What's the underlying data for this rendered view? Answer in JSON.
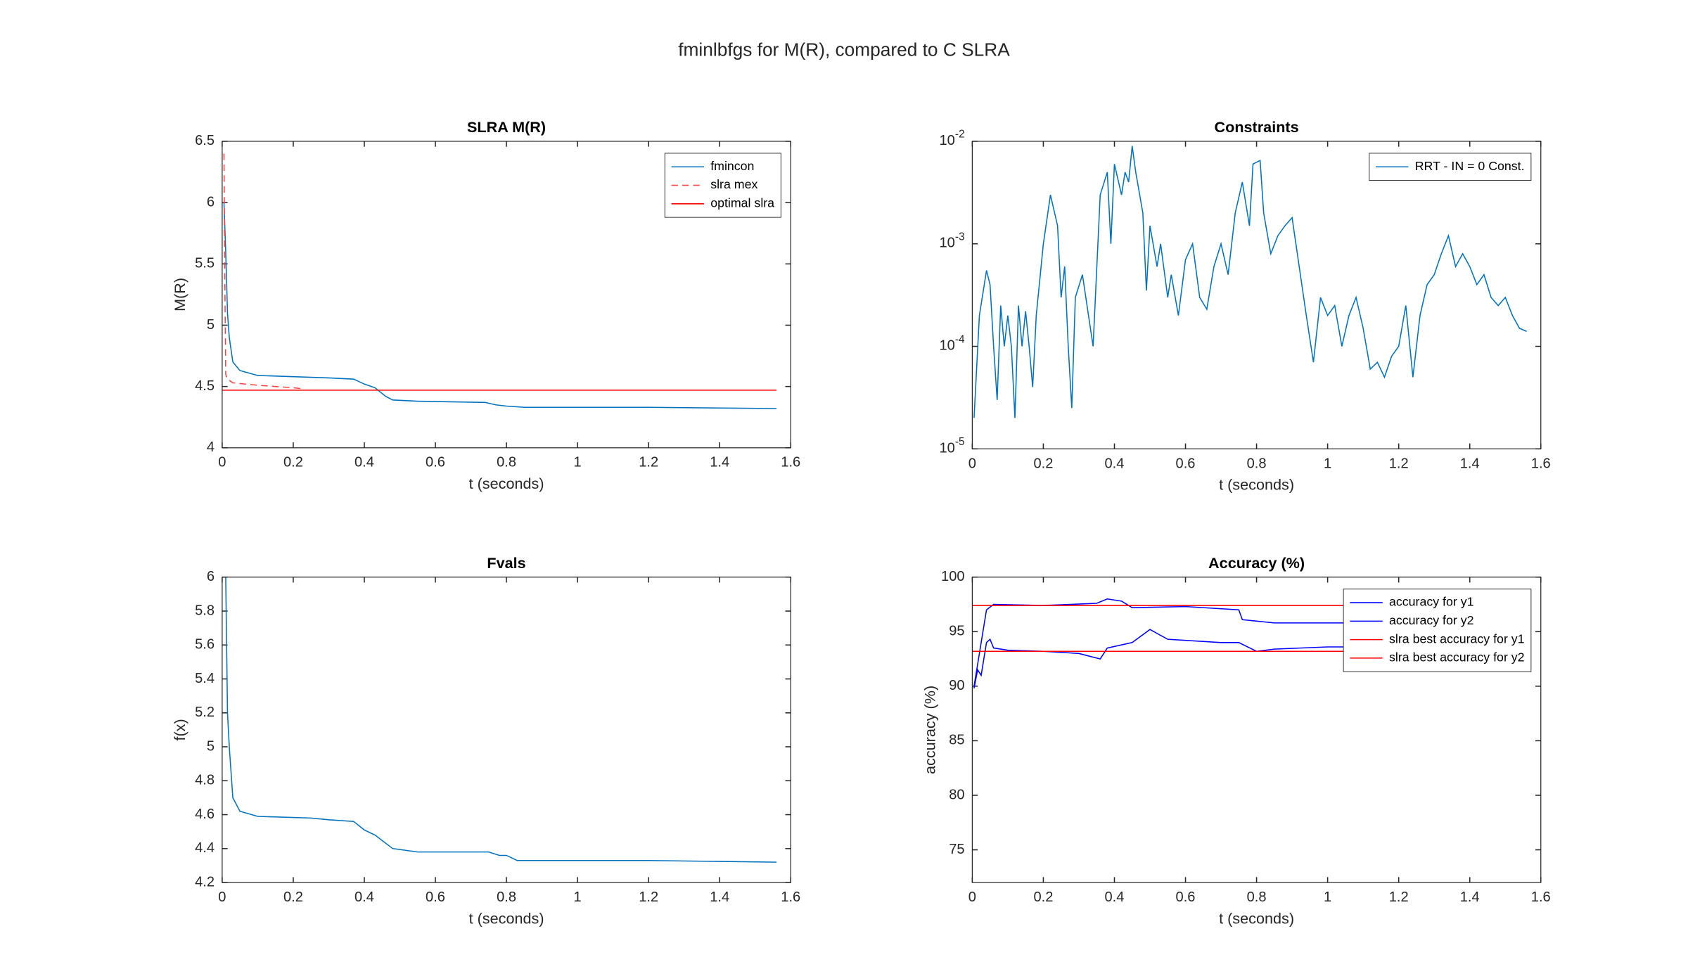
{
  "title": "fminlbfgs for M(R), compared to C SLRA",
  "chart_data": [
    {
      "type": "line",
      "title": "SLRA M(R)",
      "xlabel": "t (seconds)",
      "ylabel": "M(R)",
      "xlim": [
        0,
        1.6
      ],
      "xticks": [
        0,
        0.2,
        0.4,
        0.6,
        0.8,
        1,
        1.2,
        1.4,
        1.6
      ],
      "ylim": [
        4,
        6.5
      ],
      "yticks": [
        4,
        4.5,
        5,
        5.5,
        6,
        6.5
      ],
      "legend": "northeast",
      "series": [
        {
          "name": "fmincon",
          "color": "#0072bd",
          "style": "solid",
          "x": [
            0.005,
            0.01,
            0.015,
            0.02,
            0.03,
            0.05,
            0.1,
            0.2,
            0.3,
            0.37,
            0.4,
            0.43,
            0.46,
            0.48,
            0.55,
            0.74,
            0.77,
            0.8,
            0.85,
            0.9,
            1.2,
            1.56
          ],
          "values": [
            6.0,
            5.6,
            5.1,
            4.9,
            4.7,
            4.63,
            4.59,
            4.58,
            4.57,
            4.56,
            4.52,
            4.49,
            4.42,
            4.39,
            4.38,
            4.37,
            4.35,
            4.34,
            4.33,
            4.33,
            4.33,
            4.32
          ]
        },
        {
          "name": "slra mex",
          "color": "#ff4040",
          "style": "dashed",
          "x": [
            0.005,
            0.008,
            0.01,
            0.015,
            0.03,
            0.1,
            0.2,
            0.23
          ],
          "values": [
            6.4,
            5.2,
            4.6,
            4.56,
            4.53,
            4.51,
            4.49,
            4.48
          ]
        },
        {
          "name": "optimal slra",
          "color": "#ff0000",
          "style": "solid",
          "x": [
            0,
            1.56
          ],
          "values": [
            4.47,
            4.47
          ]
        }
      ]
    },
    {
      "type": "line",
      "title": "Constraints",
      "xlabel": "t (seconds)",
      "xlim": [
        0,
        1.6
      ],
      "xticks": [
        0,
        0.2,
        0.4,
        0.6,
        0.8,
        1,
        1.2,
        1.4,
        1.6
      ],
      "yscale": "log",
      "ylim": [
        1e-05,
        0.01
      ],
      "yticks": [
        {
          "value": 1e-05,
          "label": "10-5"
        },
        {
          "value": 0.0001,
          "label": "10-4"
        },
        {
          "value": 0.001,
          "label": "10-3"
        },
        {
          "value": 0.01,
          "label": "10-2"
        }
      ],
      "legend": "northeast",
      "series": [
        {
          "name": "RRT - IN = 0 Const.",
          "color": "#0072bd",
          "style": "solid",
          "x": [
            0.005,
            0.02,
            0.04,
            0.05,
            0.06,
            0.07,
            0.08,
            0.09,
            0.1,
            0.11,
            0.12,
            0.13,
            0.14,
            0.15,
            0.16,
            0.17,
            0.18,
            0.2,
            0.22,
            0.24,
            0.25,
            0.26,
            0.27,
            0.28,
            0.29,
            0.31,
            0.34,
            0.36,
            0.38,
            0.39,
            0.4,
            0.42,
            0.43,
            0.44,
            0.45,
            0.46,
            0.48,
            0.49,
            0.5,
            0.52,
            0.53,
            0.55,
            0.56,
            0.58,
            0.6,
            0.62,
            0.64,
            0.66,
            0.68,
            0.7,
            0.72,
            0.74,
            0.76,
            0.78,
            0.79,
            0.81,
            0.82,
            0.84,
            0.86,
            0.88,
            0.9,
            0.92,
            0.94,
            0.96,
            0.98,
            1.0,
            1.02,
            1.04,
            1.06,
            1.08,
            1.1,
            1.12,
            1.14,
            1.16,
            1.18,
            1.2,
            1.22,
            1.24,
            1.26,
            1.28,
            1.3,
            1.32,
            1.34,
            1.36,
            1.38,
            1.4,
            1.42,
            1.44,
            1.46,
            1.48,
            1.5,
            1.52,
            1.54,
            1.56
          ],
          "values": [
            2e-05,
            0.0002,
            0.00055,
            0.0004,
            0.0001,
            3e-05,
            0.00025,
            0.0001,
            0.0002,
            0.0001,
            2e-05,
            0.00025,
            0.0001,
            0.00022,
            0.0001,
            4e-05,
            0.0002,
            0.001,
            0.003,
            0.0015,
            0.0003,
            0.0006,
            0.0001,
            2.5e-05,
            0.0003,
            0.0005,
            0.0001,
            0.003,
            0.005,
            0.001,
            0.006,
            0.003,
            0.005,
            0.004,
            0.009,
            0.005,
            0.002,
            0.00035,
            0.0015,
            0.0006,
            0.001,
            0.0003,
            0.0005,
            0.0002,
            0.0007,
            0.001,
            0.0003,
            0.00023,
            0.0006,
            0.001,
            0.0005,
            0.002,
            0.004,
            0.0015,
            0.006,
            0.0065,
            0.002,
            0.0008,
            0.0012,
            0.0015,
            0.0018,
            0.0006,
            0.0002,
            7e-05,
            0.0003,
            0.0002,
            0.00025,
            0.0001,
            0.0002,
            0.0003,
            0.00015,
            6e-05,
            7e-05,
            5e-05,
            8e-05,
            0.0001,
            0.00025,
            5e-05,
            0.0002,
            0.0004,
            0.0005,
            0.0008,
            0.0012,
            0.0006,
            0.0008,
            0.0006,
            0.0004,
            0.0005,
            0.0003,
            0.00025,
            0.0003,
            0.0002,
            0.00015,
            0.00014
          ]
        }
      ]
    },
    {
      "type": "line",
      "title": "Fvals",
      "xlabel": "t (seconds)",
      "ylabel": "f(x)",
      "xlim": [
        0,
        1.6
      ],
      "xticks": [
        0,
        0.2,
        0.4,
        0.6,
        0.8,
        1,
        1.2,
        1.4,
        1.6
      ],
      "ylim": [
        4.2,
        6
      ],
      "yticks": [
        4.2,
        4.4,
        4.6,
        4.8,
        5,
        5.2,
        5.4,
        5.6,
        5.8,
        6
      ],
      "series": [
        {
          "color": "#0072bd",
          "style": "solid",
          "x": [
            0.01,
            0.015,
            0.02,
            0.03,
            0.05,
            0.1,
            0.25,
            0.3,
            0.37,
            0.4,
            0.43,
            0.48,
            0.55,
            0.75,
            0.78,
            0.8,
            0.83,
            0.9,
            1.2,
            1.56
          ],
          "values": [
            6.0,
            5.2,
            5.0,
            4.7,
            4.62,
            4.59,
            4.58,
            4.57,
            4.56,
            4.51,
            4.48,
            4.4,
            4.38,
            4.38,
            4.36,
            4.36,
            4.33,
            4.33,
            4.33,
            4.32
          ]
        }
      ]
    },
    {
      "type": "line",
      "title": "Accuracy (%)",
      "xlabel": "t (seconds)",
      "ylabel": "accuracy (%)",
      "xlim": [
        0,
        1.6
      ],
      "xticks": [
        0,
        0.2,
        0.4,
        0.6,
        0.8,
        1,
        1.2,
        1.4,
        1.6
      ],
      "ylim": [
        72,
        100
      ],
      "yticks": [
        75,
        80,
        85,
        90,
        95,
        100
      ],
      "legend": "northeast",
      "series": [
        {
          "name": "accuracy for y1",
          "color": "#0000ff",
          "style": "solid",
          "x": [
            0.005,
            0.02,
            0.04,
            0.06,
            0.2,
            0.35,
            0.38,
            0.42,
            0.45,
            0.6,
            0.75,
            0.76,
            0.85,
            1.0,
            1.56
          ],
          "values": [
            90,
            93,
            97,
            97.5,
            97.4,
            97.6,
            98,
            97.8,
            97.2,
            97.3,
            97.0,
            96.1,
            95.8,
            95.8,
            95.8
          ]
        },
        {
          "name": "accuracy for y2",
          "color": "#0000ff",
          "style": "solid",
          "x": [
            0.005,
            0.015,
            0.025,
            0.04,
            0.05,
            0.06,
            0.1,
            0.2,
            0.3,
            0.36,
            0.38,
            0.45,
            0.5,
            0.55,
            0.7,
            0.75,
            0.8,
            0.85,
            1.0,
            1.56
          ],
          "values": [
            89.8,
            91.5,
            91,
            94,
            94.3,
            93.5,
            93.3,
            93.2,
            93,
            92.5,
            93.5,
            94,
            95.2,
            94.3,
            94,
            94,
            93.2,
            93.4,
            93.6,
            93.6
          ]
        },
        {
          "name": "slra best accuracy for y1",
          "color": "#ff0000",
          "style": "solid",
          "x": [
            0,
            1.56
          ],
          "values": [
            97.4,
            97.4
          ]
        },
        {
          "name": "slra best accuracy for y2",
          "color": "#ff0000",
          "style": "solid",
          "x": [
            0,
            1.56
          ],
          "values": [
            93.2,
            93.2
          ]
        }
      ]
    }
  ]
}
